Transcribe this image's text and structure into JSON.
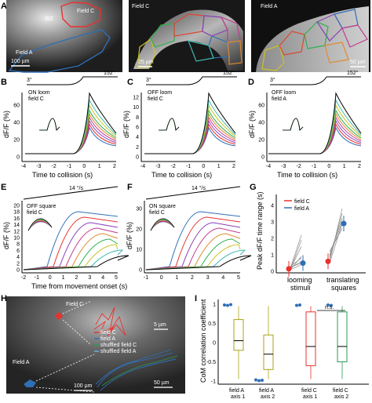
{
  "panel_letters": [
    "A",
    "B",
    "C",
    "D",
    "E",
    "F",
    "G",
    "H",
    "I"
  ],
  "panel_a": {
    "image1": {
      "siz": "SIZ",
      "field_c": "Field C",
      "field_a": "Field A",
      "scale": "100 µm"
    },
    "image2": {
      "title": "Field C",
      "scale": "25 µm"
    },
    "image3": {
      "title": "Field A",
      "scale": "50 µm"
    }
  },
  "loom_angles": {
    "start": "3°",
    "end": "152°"
  },
  "translate_speed": "14 °/s",
  "b": {
    "label_line1": "ON loom",
    "label_line2": "field C"
  },
  "c": {
    "label_line1": "OFF loom",
    "label_line2": "field C"
  },
  "d": {
    "label_line1": "OFF loom",
    "label_line2": "field A"
  },
  "e": {
    "label_line1": "OFF square",
    "label_line2": "field C"
  },
  "f": {
    "label_line1": "ON square",
    "label_line2": "field C"
  },
  "axes": {
    "dff_ylabel": "dF/F (%)",
    "collision_xlabel": "Time to collision (s)",
    "movement_xlabel": "Time from movement onset (s)",
    "bcd_xticks": [
      "-4",
      "-3",
      "-2",
      "-1",
      "0",
      "1",
      "2"
    ],
    "b_yticks": [
      "0",
      "20",
      "40",
      "60"
    ],
    "c_yticks": [
      "0",
      "2",
      "4",
      "6",
      "8",
      "10",
      "12"
    ],
    "d_yticks": [
      "0",
      "20",
      "40",
      "60"
    ],
    "e_xticks": [
      "-2",
      "-1",
      "0",
      "1",
      "2",
      "3",
      "4",
      "5"
    ],
    "e_yticks": [
      "0",
      "2",
      "4",
      "6",
      "8",
      "10",
      "12",
      "14",
      "16",
      "18",
      "20"
    ],
    "f_xticks": [
      "-1",
      "0",
      "1",
      "2",
      "3",
      "4",
      "5"
    ],
    "f_yticks": [
      "0",
      "10",
      "20",
      "30"
    ]
  },
  "g": {
    "ylabel": "Peak dF/F time range (s)",
    "yticks": [
      "0",
      "1",
      "2",
      "3",
      "4"
    ],
    "legend": [
      "field C",
      "field A"
    ],
    "categories": [
      "looming stimuli",
      "translating squares"
    ],
    "cat_lines": [
      [
        "looming",
        "stimuli"
      ],
      [
        "translating",
        "squares"
      ]
    ]
  },
  "h": {
    "field_c": "Field C",
    "field_a": "Field A",
    "scale1": "100 µm",
    "scale2": "5 µm",
    "scale3": "50 µm",
    "legend": [
      "field C",
      "field A",
      "shuffled field C",
      "shuffled field A"
    ]
  },
  "i": {
    "ylabel": "CoM correlation coefficient",
    "yticks": [
      "1",
      "0.5",
      "0",
      "-0.5",
      "-1"
    ],
    "ns": "n.s.",
    "cat_lines": [
      [
        "field A",
        "axis 1"
      ],
      [
        "field A",
        "axis 2"
      ],
      [
        "field C",
        "axis 1"
      ],
      [
        "field C",
        "axis 2"
      ]
    ]
  },
  "colors": {
    "field_c": "#e8322e",
    "field_a": "#2f6fb5",
    "shuffled_c": "#2a9a55",
    "olive": "#a9a216"
  }
}
